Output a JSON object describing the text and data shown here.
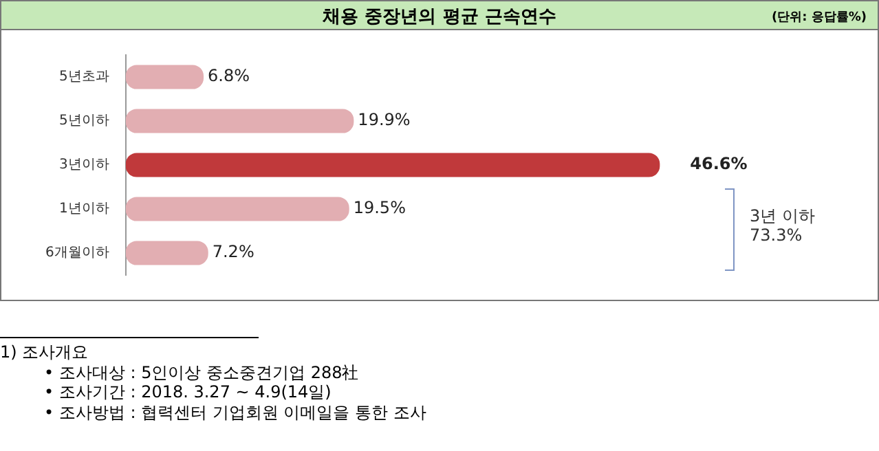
{
  "chart_data": {
    "type": "bar",
    "orientation": "horizontal",
    "title": "채용 중장년의 평균 근속연수",
    "categories": [
      "5년초과",
      "5년이하",
      "3년이하",
      "1년이하",
      "6개월이하"
    ],
    "values": [
      6.8,
      19.9,
      46.6,
      19.5,
      7.2
    ],
    "colors": [
      "#e2aeb2",
      "#e2aeb2",
      "#c0393b",
      "#e2aeb2",
      "#e2aeb2"
    ],
    "value_labels": [
      "6.8%",
      "19.9%",
      "46.6%",
      "19.5%",
      "7.2%"
    ],
    "tick_labels": "y",
    "grid": false,
    "legend": false,
    "annotations": [
      "(단위: 응답률%)",
      "3년 이하\n73.3%",
      "1) 조사개요",
      "•  조사대상 : 5인이상 중소중견기업 288社",
      "•  조사기간 : 2018.  3.27  ~  4.9(14일)",
      "•  조사방법 : 협력센터 기업회원 이메일을 통한 조사"
    ]
  }
}
